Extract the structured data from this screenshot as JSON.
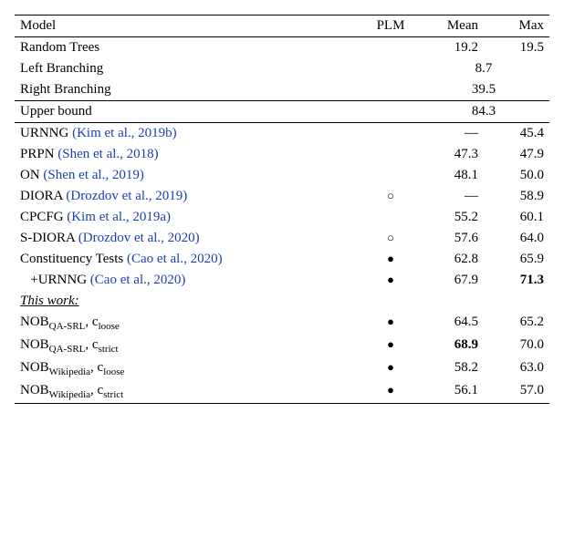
{
  "columns": {
    "model": "Model",
    "plm": "PLM",
    "mean": "Mean",
    "max": "Max"
  },
  "baselines": {
    "random": {
      "name": "Random Trees",
      "mean": "19.2",
      "max": "19.5"
    },
    "left": {
      "name": "Left Branching",
      "value": "8.7"
    },
    "right": {
      "name": "Right Branching",
      "value": "39.5"
    }
  },
  "upper": {
    "name": "Upper bound",
    "value": "84.3"
  },
  "prior": {
    "urnng": {
      "name": "URNNG ",
      "cite": "(Kim et al., 2019b)",
      "plm": "",
      "mean": "—",
      "max": "45.4"
    },
    "prpn": {
      "name": "PRPN ",
      "cite": "(Shen et al., 2018)",
      "plm": "",
      "mean": "47.3",
      "max": "47.9"
    },
    "on": {
      "name": "ON ",
      "cite": "(Shen et al., 2019)",
      "plm": "",
      "mean": "48.1",
      "max": "50.0"
    },
    "diora": {
      "name": "DIORA ",
      "cite": "(Drozdov et al., 2019)",
      "plm": "○",
      "mean": "—",
      "max": "58.9"
    },
    "cpcfg": {
      "name": "CPCFG ",
      "cite": "(Kim et al., 2019a)",
      "plm": "",
      "mean": "55.2",
      "max": "60.1"
    },
    "sdiora": {
      "name": "S-DIORA ",
      "cite": "(Drozdov et al., 2020)",
      "plm": "○",
      "mean": "57.6",
      "max": "64.0"
    },
    "ctests": {
      "name": "Constituency Tests ",
      "cite": "(Cao et al., 2020)",
      "plm": "●",
      "mean": "62.8",
      "max": "65.9"
    },
    "curnng": {
      "name": "   +URNNG ",
      "cite": "(Cao et al., 2020)",
      "plm": "●",
      "mean": "67.9",
      "max": "71.3"
    }
  },
  "thiswork_label": "This work:",
  "ours": {
    "qa_loose": {
      "prefix": "NOB",
      "sub": "QA-SRL",
      "suffix": ", c",
      "sub2": "loose",
      "plm": "●",
      "mean": "64.5",
      "max": "65.2"
    },
    "qa_strict": {
      "prefix": "NOB",
      "sub": "QA-SRL",
      "suffix": ", c",
      "sub2": "strict",
      "plm": "●",
      "mean": "68.9",
      "max": "70.0"
    },
    "wiki_loose": {
      "prefix": "NOB",
      "sub": "Wikipedia",
      "suffix": ", c",
      "sub2": "loose",
      "plm": "●",
      "mean": "58.2",
      "max": "63.0"
    },
    "wiki_strict": {
      "prefix": "NOB",
      "sub": "Wikipedia",
      "suffix": ", c",
      "sub2": "strict",
      "plm": "●",
      "mean": "56.1",
      "max": "57.0"
    }
  }
}
